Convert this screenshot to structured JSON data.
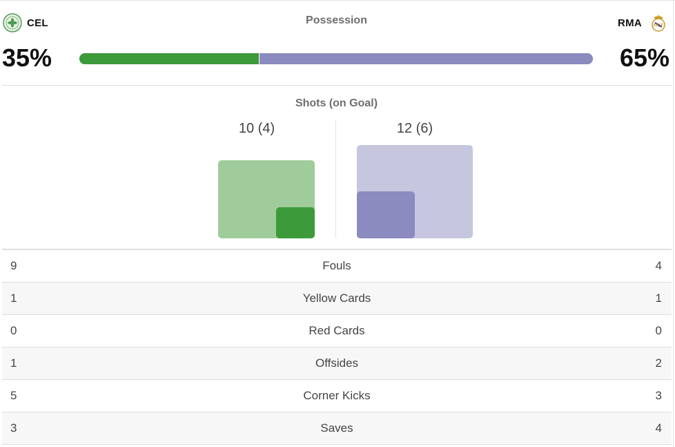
{
  "home": {
    "abbr": "CEL",
    "crest_icon": "celtic-crest-icon",
    "possession_text": "35%",
    "possession_value": 35,
    "shots_text": "10 (4)",
    "shots_total": 10,
    "shots_on_goal": 4,
    "color": "#3d9a3a",
    "light_color": "#9fcc9a"
  },
  "away": {
    "abbr": "RMA",
    "crest_icon": "real-madrid-crest-icon",
    "possession_text": "65%",
    "possession_value": 65,
    "shots_text": "12 (6)",
    "shots_total": 12,
    "shots_on_goal": 6,
    "color": "#8b8bbf",
    "light_color": "#c6c6de"
  },
  "possession": {
    "title": "Possession"
  },
  "shots": {
    "title": "Shots (on Goal)"
  },
  "stats": [
    {
      "label": "Fouls",
      "home": "9",
      "away": "4"
    },
    {
      "label": "Yellow Cards",
      "home": "1",
      "away": "1"
    },
    {
      "label": "Red Cards",
      "home": "0",
      "away": "0"
    },
    {
      "label": "Offsides",
      "home": "1",
      "away": "2"
    },
    {
      "label": "Corner Kicks",
      "home": "5",
      "away": "3"
    },
    {
      "label": "Saves",
      "home": "3",
      "away": "4"
    }
  ]
}
